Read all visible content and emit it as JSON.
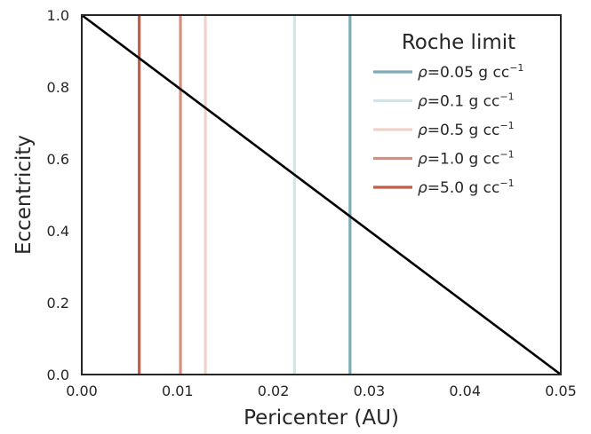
{
  "chart_data": {
    "type": "line",
    "xlabel": "Pericenter (AU)",
    "ylabel": "Eccentricity",
    "xlim": [
      0.0,
      0.05
    ],
    "ylim": [
      0.0,
      1.0
    ],
    "xticks": [
      "0.00",
      "0.01",
      "0.02",
      "0.03",
      "0.04",
      "0.05"
    ],
    "yticks": [
      "0.0",
      "0.2",
      "0.4",
      "0.6",
      "0.8",
      "1.0"
    ],
    "grid": false,
    "legend": {
      "title": "Roche limit",
      "placement": "top-right"
    },
    "series": [
      {
        "kind": "diagonal",
        "color": "#000000",
        "x": [
          0.0,
          0.05
        ],
        "y": [
          1.0,
          0.0
        ]
      },
      {
        "kind": "vline",
        "rho_symbol": "ρ",
        "value_text": "=0.05 g cc",
        "superscript": "−1",
        "x": 0.028,
        "color": "#7eaab6"
      },
      {
        "kind": "vline",
        "rho_symbol": "ρ",
        "value_text": "=0.1 g cc",
        "superscript": "−1",
        "x": 0.0222,
        "color": "#d3e3e6"
      },
      {
        "kind": "vline",
        "rho_symbol": "ρ",
        "value_text": "=0.5 g cc",
        "superscript": "−1",
        "x": 0.0129,
        "color": "#f0d2c9"
      },
      {
        "kind": "vline",
        "rho_symbol": "ρ",
        "value_text": "=1.0 g cc",
        "superscript": "−1",
        "x": 0.0103,
        "color": "#d88e7f"
      },
      {
        "kind": "vline",
        "rho_symbol": "ρ",
        "value_text": "=5.0 g cc",
        "superscript": "−1",
        "x": 0.006,
        "color": "#c25c47"
      }
    ]
  }
}
